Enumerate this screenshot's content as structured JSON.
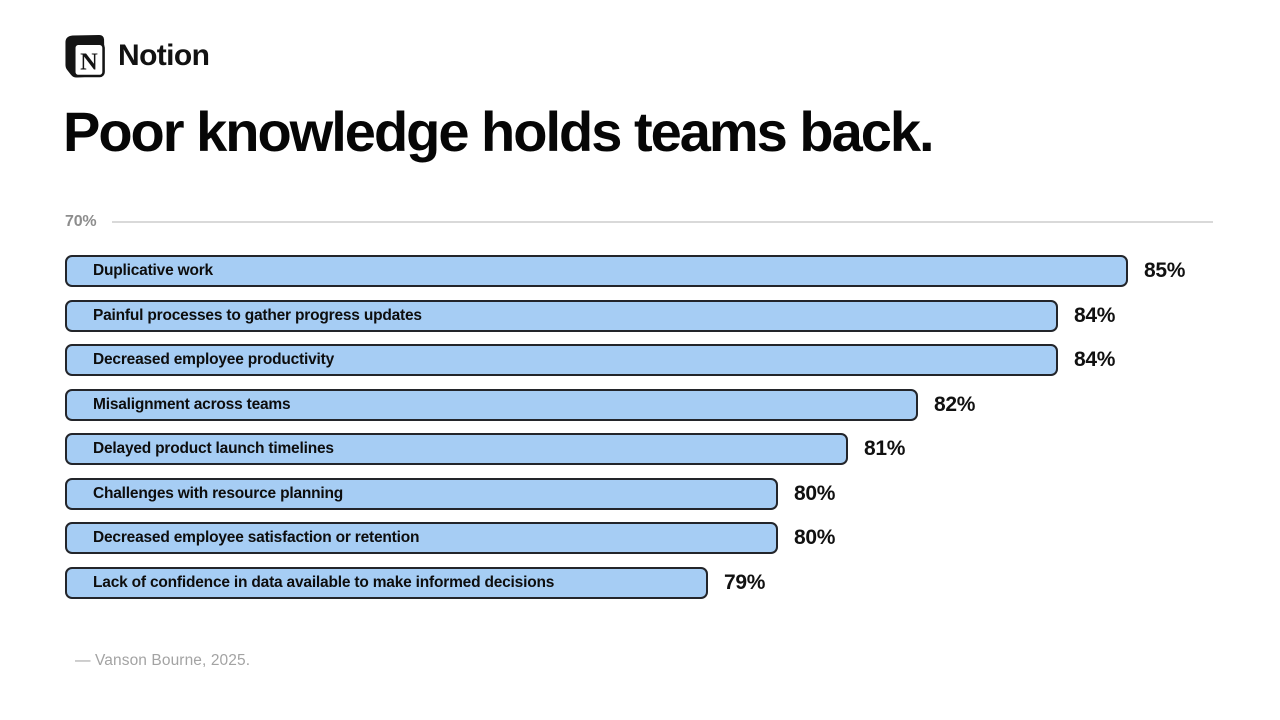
{
  "brand": {
    "name": "Notion"
  },
  "title": "Poor knowledge holds teams back.",
  "source": "— Vanson Bourne, 2025.",
  "chart_data": {
    "type": "bar",
    "orientation": "horizontal",
    "title": "Poor knowledge holds teams back.",
    "axis_min": 70,
    "axis_min_label": "70%",
    "grid": "single top gridline at axis minimum",
    "legend": "none",
    "categories": [
      "Duplicative work",
      "Painful processes to gather progress updates",
      "Decreased employee productivity",
      "Misalignment across teams",
      "Delayed product launch timelines",
      "Challenges with resource planning",
      "Decreased employee satisfaction or retention",
      "Lack of confidence in data available to make informed decisions"
    ],
    "values": [
      85,
      84,
      84,
      82,
      81,
      80,
      80,
      79
    ],
    "value_labels": [
      "85%",
      "84%",
      "84%",
      "82%",
      "81%",
      "80%",
      "80%",
      "79%"
    ],
    "colors": {
      "bar_fill": "#a6cdf4",
      "bar_border": "#23252a",
      "gridline": "#d9d9d9",
      "axis_label": "#8d8d8d",
      "source_text": "#a3a3a3"
    },
    "source_text": "— Vanson Bourne, 2025."
  }
}
